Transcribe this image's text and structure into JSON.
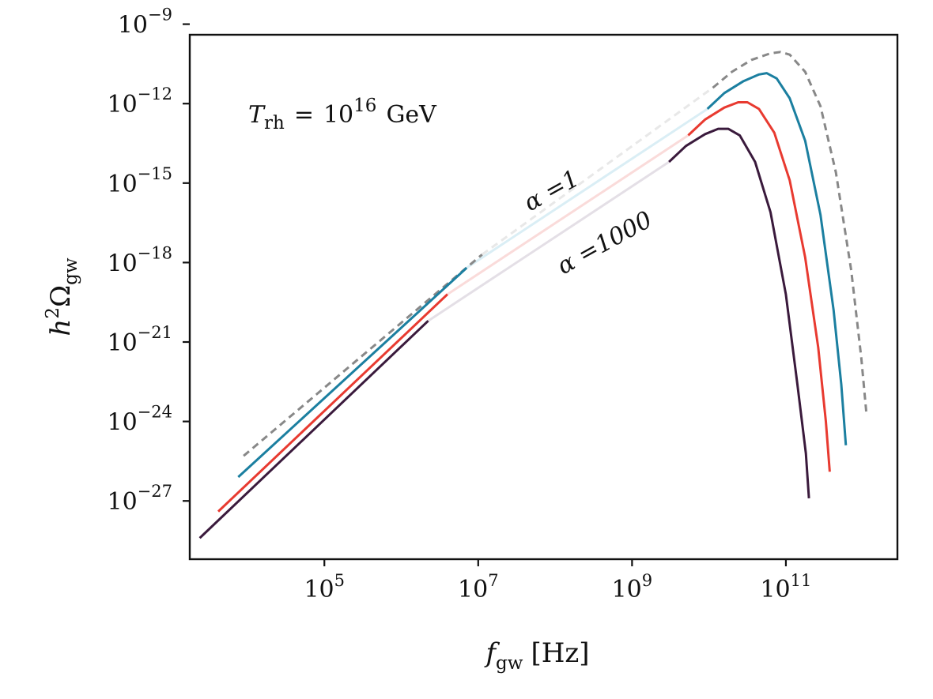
{
  "chart_data": {
    "type": "line",
    "title": "",
    "xlabel": {
      "symbol": "f",
      "subscript": "gw",
      "unit": "[Hz]"
    },
    "ylabel": {
      "symbol": "h",
      "power": "2",
      "greek": "Ω",
      "subscript": "gw"
    },
    "x_log10_range": [
      3.25,
      12.45
    ],
    "y_log10_range": [
      -29.2,
      -9.4
    ],
    "xscale": "log",
    "yscale": "log",
    "x_ticks": [
      {
        "base": "10",
        "exp": "5",
        "log10": 5
      },
      {
        "base": "10",
        "exp": "7",
        "log10": 7
      },
      {
        "base": "10",
        "exp": "9",
        "log10": 9
      },
      {
        "base": "10",
        "exp": "11",
        "log10": 11
      }
    ],
    "y_ticks": [
      {
        "base": "10",
        "exp": "−9",
        "log10": -9
      },
      {
        "base": "10",
        "exp": "−12",
        "log10": -12
      },
      {
        "base": "10",
        "exp": "−15",
        "log10": -15
      },
      {
        "base": "10",
        "exp": "−18",
        "log10": -18
      },
      {
        "base": "10",
        "exp": "−21",
        "log10": -21
      },
      {
        "base": "10",
        "exp": "−24",
        "log10": -24
      },
      {
        "base": "10",
        "exp": "−27",
        "log10": -27
      }
    ],
    "grid": false,
    "annotation": {
      "symbol": "T",
      "subscript": "rh",
      "equals": "=",
      "base": "10",
      "exp": "16",
      "unit": "GeV"
    },
    "series_labels": [
      {
        "text": "α =1",
        "color": "#999999",
        "series": "alpha_1"
      },
      {
        "text": "α =1000",
        "color": "#3a1a3c",
        "series": "alpha_1000"
      }
    ],
    "series": [
      {
        "name": "alpha_1",
        "color": "#888888",
        "dash": true,
        "faint_color": "#e8e8e8",
        "low_segment": [
          [
            3.95,
            -25.3
          ],
          [
            7.05,
            -17.7
          ]
        ],
        "bridge": [
          [
            7.05,
            -17.7
          ],
          [
            10.05,
            -11.4
          ]
        ],
        "peak_segment": [
          [
            10.05,
            -11.4
          ],
          [
            10.3,
            -10.8
          ],
          [
            10.55,
            -10.35
          ],
          [
            10.8,
            -10.1
          ],
          [
            10.93,
            -10.05
          ],
          [
            11.05,
            -10.15
          ],
          [
            11.25,
            -10.8
          ],
          [
            11.45,
            -12.1
          ],
          [
            11.65,
            -14.6
          ],
          [
            11.85,
            -18.3
          ],
          [
            11.98,
            -21.6
          ],
          [
            12.05,
            -23.8
          ]
        ]
      },
      {
        "name": "alpha_10",
        "color": "#1b7fa0",
        "dash": false,
        "faint_color": "#daeef5",
        "low_segment": [
          [
            3.88,
            -26.1
          ],
          [
            6.85,
            -18.2
          ]
        ],
        "bridge": [
          [
            6.85,
            -18.2
          ],
          [
            9.98,
            -12.2
          ]
        ],
        "peak_segment": [
          [
            9.98,
            -12.2
          ],
          [
            10.2,
            -11.6
          ],
          [
            10.45,
            -11.15
          ],
          [
            10.65,
            -10.9
          ],
          [
            10.75,
            -10.85
          ],
          [
            10.88,
            -11.05
          ],
          [
            11.05,
            -11.8
          ],
          [
            11.25,
            -13.4
          ],
          [
            11.45,
            -16.2
          ],
          [
            11.62,
            -19.8
          ],
          [
            11.72,
            -22.6
          ],
          [
            11.78,
            -24.9
          ]
        ]
      },
      {
        "name": "alpha_100",
        "color": "#e83a30",
        "dash": false,
        "faint_color": "#fadbda",
        "low_segment": [
          [
            3.62,
            -27.4
          ],
          [
            6.6,
            -19.2
          ]
        ],
        "bridge": [
          [
            6.6,
            -19.2
          ],
          [
            9.73,
            -13.2
          ]
        ],
        "peak_segment": [
          [
            9.73,
            -13.2
          ],
          [
            9.95,
            -12.6
          ],
          [
            10.2,
            -12.15
          ],
          [
            10.38,
            -11.95
          ],
          [
            10.5,
            -11.95
          ],
          [
            10.65,
            -12.2
          ],
          [
            10.85,
            -13.1
          ],
          [
            11.05,
            -14.9
          ],
          [
            11.25,
            -17.8
          ],
          [
            11.42,
            -21.2
          ],
          [
            11.52,
            -24.0
          ],
          [
            11.57,
            -25.9
          ]
        ]
      },
      {
        "name": "alpha_1000",
        "color": "#3a1a3c",
        "dash": false,
        "faint_color": "#e4dfe6",
        "low_segment": [
          [
            3.38,
            -28.4
          ],
          [
            6.35,
            -20.2
          ]
        ],
        "bridge": [
          [
            6.35,
            -20.2
          ],
          [
            9.48,
            -14.2
          ]
        ],
        "peak_segment": [
          [
            9.48,
            -14.2
          ],
          [
            9.7,
            -13.6
          ],
          [
            9.95,
            -13.15
          ],
          [
            10.12,
            -12.95
          ],
          [
            10.25,
            -12.95
          ],
          [
            10.4,
            -13.2
          ],
          [
            10.6,
            -14.2
          ],
          [
            10.8,
            -16.1
          ],
          [
            11.0,
            -19.2
          ],
          [
            11.15,
            -22.6
          ],
          [
            11.26,
            -25.2
          ],
          [
            11.3,
            -26.9
          ]
        ]
      }
    ]
  }
}
